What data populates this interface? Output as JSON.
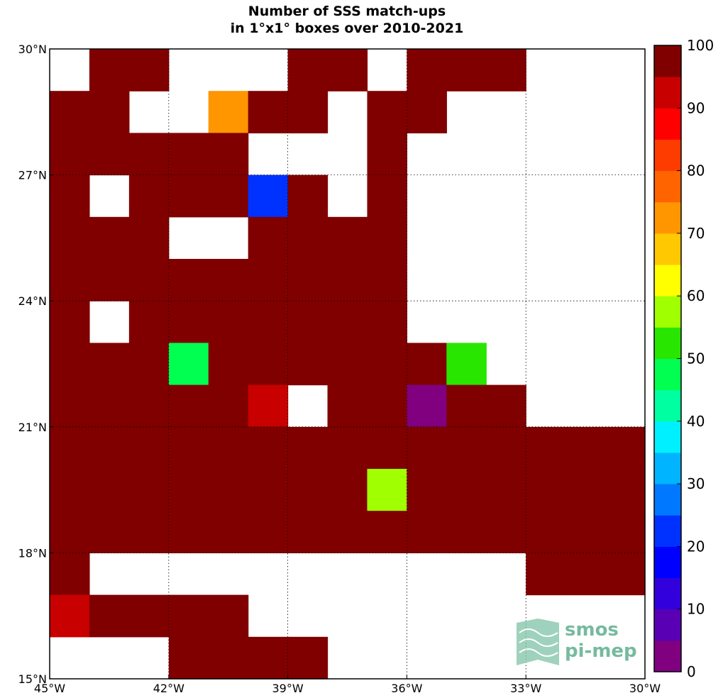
{
  "chart_data": {
    "type": "heatmap",
    "title": "Number of SSS match-ups",
    "subtitle": "in 1°x1° boxes over 2010-2021",
    "xlabel": "",
    "ylabel": "",
    "xlim": [
      -45,
      -30
    ],
    "ylim": [
      15,
      30
    ],
    "cell_size_deg": 1,
    "x_ticks": [
      {
        "value": -45,
        "label": "45°W"
      },
      {
        "value": -42,
        "label": "42°W"
      },
      {
        "value": -39,
        "label": "39°W"
      },
      {
        "value": -36,
        "label": "36°W"
      },
      {
        "value": -33,
        "label": "33°W"
      },
      {
        "value": -30,
        "label": "30°W"
      }
    ],
    "y_ticks": [
      {
        "value": 15,
        "label": "15°N"
      },
      {
        "value": 18,
        "label": "18°N"
      },
      {
        "value": 21,
        "label": "21°N"
      },
      {
        "value": 24,
        "label": "24°N"
      },
      {
        "value": 27,
        "label": "27°N"
      },
      {
        "value": 30,
        "label": "30°N"
      }
    ],
    "grid": true,
    "colorbar": {
      "min": 0,
      "max": 100,
      "step": 5,
      "tick_labels": [
        "0",
        "10",
        "20",
        "30",
        "40",
        "50",
        "60",
        "70",
        "80",
        "90",
        "100"
      ],
      "colors": [
        "#800080",
        "#5a00b4",
        "#3200dc",
        "#0000ff",
        "#0032ff",
        "#0078ff",
        "#00b4ff",
        "#00f0ff",
        "#00ffa0",
        "#00ff50",
        "#28e600",
        "#a0ff00",
        "#ffff00",
        "#ffc800",
        "#ff9600",
        "#ff6400",
        "#ff3c00",
        "#ff0000",
        "#c80000",
        "#800000"
      ]
    },
    "grid_origin": {
      "west_edge_lon": -45,
      "north_edge_lat": 30
    },
    "row_order": "north to south, each row = 15 boxes from 45°W to 30°W",
    "values": [
      [
        null,
        100,
        100,
        null,
        null,
        null,
        100,
        100,
        null,
        100,
        100,
        100,
        null,
        null,
        null
      ],
      [
        100,
        100,
        null,
        null,
        70,
        100,
        95,
        null,
        100,
        100,
        null,
        null,
        null,
        null,
        null
      ],
      [
        100,
        100,
        100,
        100,
        100,
        null,
        null,
        null,
        100,
        null,
        null,
        null,
        null,
        null,
        null
      ],
      [
        100,
        null,
        100,
        100,
        100,
        20,
        100,
        null,
        100,
        null,
        null,
        null,
        null,
        null,
        null
      ],
      [
        100,
        100,
        100,
        null,
        null,
        100,
        100,
        100,
        100,
        null,
        null,
        null,
        null,
        null,
        null
      ],
      [
        100,
        100,
        100,
        100,
        100,
        100,
        100,
        100,
        100,
        null,
        null,
        null,
        null,
        null,
        null
      ],
      [
        100,
        null,
        100,
        100,
        100,
        100,
        100,
        100,
        100,
        null,
        null,
        null,
        null,
        null,
        null
      ],
      [
        100,
        100,
        100,
        48,
        100,
        100,
        100,
        100,
        100,
        100,
        52,
        null,
        null,
        null,
        null
      ],
      [
        100,
        100,
        100,
        100,
        100,
        90,
        null,
        100,
        100,
        3,
        100,
        100,
        null,
        null,
        null
      ],
      [
        100,
        100,
        100,
        100,
        100,
        100,
        100,
        100,
        100,
        100,
        100,
        100,
        100,
        100,
        100
      ],
      [
        100,
        100,
        100,
        100,
        100,
        100,
        100,
        100,
        57,
        100,
        100,
        100,
        100,
        100,
        100
      ],
      [
        100,
        100,
        100,
        100,
        100,
        100,
        100,
        100,
        100,
        100,
        100,
        100,
        100,
        100,
        100
      ],
      [
        100,
        null,
        null,
        null,
        null,
        null,
        null,
        null,
        null,
        null,
        null,
        null,
        100,
        100,
        100
      ],
      [
        90,
        100,
        100,
        100,
        100,
        null,
        null,
        null,
        null,
        null,
        null,
        null,
        null,
        null,
        null
      ],
      [
        null,
        null,
        null,
        100,
        100,
        100,
        100,
        null,
        null,
        null,
        null,
        null,
        null,
        null,
        null
      ]
    ]
  },
  "logo": {
    "line1": "smos",
    "line2": "pi-mep",
    "color": "#5fae8f"
  }
}
